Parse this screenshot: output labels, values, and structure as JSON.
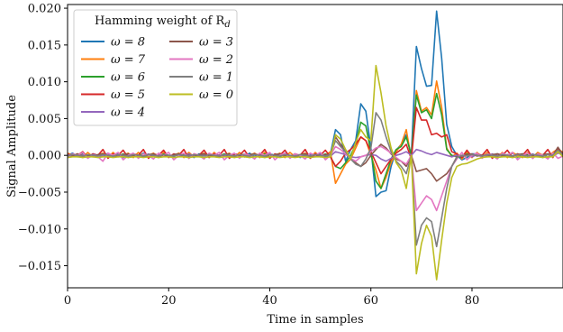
{
  "chart_data": {
    "type": "line",
    "xlabel": "Time in samples",
    "ylabel": "Signal Amplitude",
    "xlim": [
      0,
      98
    ],
    "ylim": [
      -0.018,
      0.0205
    ],
    "xticks": [
      0,
      20,
      40,
      60,
      80
    ],
    "xtick_labels": [
      "0",
      "20",
      "40",
      "60",
      "80"
    ],
    "yticks": [
      -0.015,
      -0.01,
      -0.005,
      0.0,
      0.005,
      0.01,
      0.015,
      0.02
    ],
    "ytick_labels": [
      "−0.015",
      "−0.010",
      "−0.005",
      "0.000",
      "0.005",
      "0.010",
      "0.015",
      "0.020"
    ],
    "grid": false,
    "legend": {
      "title": "Hamming weight of R",
      "title_subscript": "d",
      "placement": "top-left",
      "columns": 2
    },
    "x": [
      0,
      1,
      2,
      3,
      4,
      5,
      6,
      7,
      8,
      9,
      10,
      11,
      12,
      13,
      14,
      15,
      16,
      17,
      18,
      19,
      20,
      21,
      22,
      23,
      24,
      25,
      26,
      27,
      28,
      29,
      30,
      31,
      32,
      33,
      34,
      35,
      36,
      37,
      38,
      39,
      40,
      41,
      42,
      43,
      44,
      45,
      46,
      47,
      48,
      49,
      50,
      51,
      52,
      53,
      54,
      55,
      56,
      57,
      58,
      59,
      60,
      61,
      62,
      63,
      64,
      65,
      66,
      67,
      68,
      69,
      70,
      71,
      72,
      73,
      74,
      75,
      76,
      77,
      78,
      79,
      80,
      81,
      82,
      83,
      84,
      85,
      86,
      87,
      88,
      89,
      90,
      91,
      92,
      93,
      94,
      95,
      96,
      97,
      98
    ],
    "series": [
      {
        "name": "ω = 8",
        "color": "#1f77b4",
        "values": [
          0.0,
          0.0003,
          -0.0002,
          0.0002,
          -0.0003,
          0.0002,
          0.0,
          -0.0002,
          0.0003,
          -0.0002,
          0.0002,
          -0.0003,
          0.0002,
          0.0,
          -0.0002,
          0.0003,
          -0.0002,
          0.0002,
          -0.0003,
          0.0002,
          0.0,
          -0.0002,
          0.0003,
          -0.0002,
          0.0002,
          -0.0003,
          0.0002,
          0.0,
          -0.0002,
          0.0003,
          -0.0002,
          0.0002,
          -0.0003,
          0.0002,
          0.0,
          -0.0002,
          0.0003,
          -0.0002,
          0.0002,
          -0.0003,
          0.0002,
          0.0,
          -0.0002,
          0.0003,
          -0.0002,
          0.0002,
          -0.0003,
          0.0002,
          0.0,
          -0.0002,
          0.0002,
          -0.0003,
          0.0002,
          0.0035,
          0.0028,
          -0.0008,
          0.0008,
          0.002,
          0.007,
          0.006,
          0.001,
          -0.0056,
          -0.005,
          -0.0048,
          -0.0015,
          0.0007,
          0.0015,
          0.0028,
          0.0,
          0.0148,
          0.0118,
          0.0094,
          0.0095,
          0.0196,
          0.0132,
          0.0042,
          0.0012,
          0.0,
          -0.0006,
          -0.0003,
          0.0002,
          0.0002,
          -0.0002,
          0.0003,
          -0.0003,
          0.0002,
          0.0,
          -0.0002,
          0.0003,
          -0.0003,
          0.0002,
          0.0,
          -0.0002,
          0.0003,
          -0.0003,
          0.0002,
          0.0,
          0.0008,
          0.0001
        ]
      },
      {
        "name": "ω = 7",
        "color": "#ff7f0e",
        "values": [
          0.0003,
          0.0,
          0.0002,
          -0.0003,
          0.0004,
          -0.0002,
          0.0,
          0.0003,
          -0.0003,
          0.0004,
          -0.0002,
          0.0,
          0.0003,
          -0.0003,
          0.0004,
          -0.0002,
          0.0,
          0.0003,
          -0.0003,
          0.0004,
          -0.0002,
          0.0,
          0.0003,
          -0.0003,
          0.0004,
          -0.0002,
          0.0,
          0.0003,
          -0.0003,
          0.0004,
          -0.0002,
          0.0,
          0.0003,
          -0.0003,
          0.0004,
          -0.0002,
          0.0,
          0.0003,
          -0.0003,
          0.0004,
          -0.0002,
          0.0,
          0.0003,
          -0.0003,
          0.0004,
          -0.0002,
          0.0,
          0.0003,
          -0.0003,
          0.0004,
          -0.0002,
          0.0,
          0.0005,
          -0.0038,
          -0.0025,
          -0.0012,
          -0.0005,
          0.001,
          0.0025,
          0.002,
          0.0,
          -0.002,
          -0.0045,
          -0.003,
          -0.001,
          0.0005,
          0.0015,
          0.0035,
          -0.0005,
          0.0088,
          0.006,
          0.0065,
          0.0055,
          0.0101,
          0.0065,
          0.001,
          -0.0002,
          0.0003,
          -0.0005,
          0.0004,
          -0.0003,
          0.0004,
          -0.0003,
          0.0004,
          0.0,
          -0.0003,
          0.0004,
          -0.0003,
          0.0004,
          0.0,
          -0.0003,
          0.0004,
          -0.0003,
          0.0004,
          0.0,
          -0.0003,
          0.0004,
          0.0009,
          0.0004
        ]
      },
      {
        "name": "ω = 6",
        "color": "#2ca02c",
        "values": [
          -0.0002,
          0.0001,
          -0.0001,
          0.0002,
          -0.0002,
          0.0001,
          -0.0001,
          0.0002,
          -0.0002,
          0.0001,
          -0.0001,
          0.0002,
          -0.0002,
          0.0001,
          -0.0001,
          0.0002,
          -0.0002,
          0.0001,
          -0.0001,
          0.0002,
          -0.0002,
          0.0001,
          -0.0001,
          0.0002,
          -0.0002,
          0.0001,
          -0.0001,
          0.0002,
          -0.0002,
          0.0001,
          -0.0001,
          0.0002,
          -0.0002,
          0.0001,
          -0.0001,
          0.0002,
          -0.0002,
          0.0001,
          -0.0001,
          0.0002,
          -0.0002,
          0.0001,
          -0.0001,
          0.0002,
          -0.0002,
          0.0001,
          -0.0001,
          0.0002,
          -0.0002,
          0.0001,
          -0.0001,
          0.0002,
          -0.0002,
          -0.0015,
          -0.0018,
          -0.001,
          0.0,
          0.0015,
          0.0045,
          0.004,
          0.0005,
          -0.0035,
          -0.0045,
          -0.0025,
          -0.0005,
          0.0008,
          0.0012,
          0.0025,
          0.0,
          0.0082,
          0.0058,
          0.0062,
          0.005,
          0.0084,
          0.0055,
          0.0008,
          0.0,
          -0.0002,
          -0.0003,
          0.0002,
          -0.0001,
          0.0002,
          -0.0002,
          0.0001,
          -0.0001,
          0.0002,
          -0.0002,
          0.0001,
          -0.0001,
          0.0002,
          -0.0002,
          0.0001,
          -0.0001,
          0.0002,
          -0.0002,
          0.0001,
          -0.0001,
          0.0005,
          0.0002
        ]
      },
      {
        "name": "ω = 5",
        "color": "#d62728",
        "values": [
          0.0002,
          -0.0001,
          0.0,
          0.0005,
          -0.0003,
          0.0002,
          0.0,
          0.0008,
          -0.0004,
          0.0002,
          0.0,
          0.0007,
          -0.0003,
          0.0002,
          0.0,
          0.0008,
          -0.0004,
          0.0002,
          0.0,
          0.0007,
          -0.0003,
          0.0002,
          0.0,
          0.0008,
          -0.0004,
          0.0002,
          0.0,
          0.0007,
          -0.0003,
          0.0002,
          0.0,
          0.0008,
          -0.0004,
          0.0002,
          0.0,
          0.0007,
          -0.0003,
          0.0002,
          0.0,
          0.0008,
          -0.0004,
          0.0002,
          0.0,
          0.0007,
          -0.0003,
          0.0002,
          0.0,
          0.0008,
          -0.0004,
          0.0002,
          0.0,
          0.0007,
          -0.0002,
          -0.0015,
          -0.0008,
          0.0003,
          0.0008,
          0.0015,
          0.0025,
          0.002,
          0.0005,
          -0.001,
          -0.0025,
          -0.0015,
          -0.0005,
          0.0003,
          0.0008,
          0.0015,
          -0.0005,
          0.0065,
          0.0048,
          0.0048,
          0.0028,
          0.003,
          0.0025,
          0.0028,
          0.0005,
          0.0002,
          -0.0003,
          0.0007,
          -0.0002,
          0.0002,
          0.0,
          0.0008,
          -0.0004,
          0.0002,
          0.0,
          0.0007,
          -0.0003,
          0.0002,
          0.0,
          0.0008,
          -0.0004,
          0.0002,
          0.0,
          0.0008,
          -0.0003,
          0.0009,
          0.0002
        ]
      },
      {
        "name": "ω = 4",
        "color": "#9467bd",
        "values": [
          0.0,
          0.0001,
          -0.0001,
          0.0001,
          -0.0002,
          0.0001,
          0.0,
          -0.0001,
          0.0002,
          -0.0001,
          0.0,
          0.0001,
          -0.0002,
          0.0001,
          0.0,
          -0.0001,
          0.0002,
          -0.0001,
          0.0,
          0.0001,
          -0.0002,
          0.0001,
          0.0,
          -0.0001,
          0.0002,
          -0.0001,
          0.0,
          0.0001,
          -0.0002,
          0.0001,
          0.0,
          -0.0001,
          0.0002,
          -0.0001,
          0.0,
          0.0001,
          -0.0002,
          0.0001,
          0.0,
          -0.0001,
          0.0002,
          -0.0001,
          0.0,
          0.0001,
          -0.0002,
          0.0001,
          0.0,
          -0.0001,
          0.0002,
          -0.0001,
          0.0,
          0.0001,
          -0.0001,
          0.0005,
          0.0003,
          0.0001,
          -0.0002,
          -0.0003,
          -0.0002,
          0.0,
          0.0001,
          0.0,
          -0.0005,
          -0.0008,
          -0.0004,
          0.0,
          0.0002,
          0.0005,
          0.0,
          0.0008,
          0.0006,
          0.0003,
          0.0001,
          0.0004,
          0.0002,
          0.0,
          -0.0002,
          0.0,
          -0.0001,
          0.0001,
          -0.0002,
          0.0001,
          0.0,
          -0.0001,
          0.0002,
          -0.0001,
          0.0,
          0.0001,
          -0.0002,
          0.0001,
          0.0,
          -0.0001,
          0.0002,
          -0.0001,
          0.0,
          0.0001,
          -0.0001,
          0.0003,
          0.0001
        ]
      },
      {
        "name": "ω = 3",
        "color": "#8c564b",
        "values": [
          -0.0002,
          0.0,
          0.0002,
          -0.0001,
          0.0,
          -0.0002,
          0.0001,
          0.0002,
          -0.0001,
          0.0,
          -0.0002,
          0.0001,
          0.0002,
          -0.0001,
          0.0,
          -0.0002,
          0.0001,
          0.0002,
          -0.0001,
          0.0,
          -0.0002,
          0.0001,
          0.0002,
          -0.0001,
          0.0,
          -0.0002,
          0.0001,
          0.0002,
          -0.0001,
          0.0,
          -0.0002,
          0.0001,
          0.0002,
          -0.0001,
          0.0,
          -0.0002,
          0.0001,
          0.0002,
          -0.0001,
          0.0,
          -0.0002,
          0.0001,
          0.0002,
          -0.0001,
          0.0,
          -0.0002,
          0.0001,
          0.0002,
          -0.0001,
          0.0,
          -0.0002,
          0.0001,
          0.0,
          0.0025,
          0.0015,
          0.0005,
          -0.0005,
          -0.001,
          -0.0015,
          -0.001,
          0.0,
          0.0008,
          0.0015,
          0.001,
          0.0002,
          -0.0005,
          -0.0008,
          -0.0015,
          0.0,
          -0.0022,
          -0.002,
          -0.0018,
          -0.0025,
          -0.0035,
          -0.003,
          -0.0025,
          -0.0015,
          -0.0002,
          0.0,
          0.0001,
          0.0002,
          -0.0001,
          0.0,
          -0.0002,
          0.0001,
          0.0002,
          -0.0001,
          0.0,
          -0.0002,
          0.0001,
          0.0002,
          -0.0001,
          0.0,
          -0.0002,
          0.0001,
          0.0002,
          0.0,
          0.0011,
          0.0001
        ]
      },
      {
        "name": "ω = 2",
        "color": "#e377c2",
        "values": [
          -0.0003,
          0.0002,
          0.0,
          0.0004,
          -0.0004,
          0.0,
          -0.0002,
          -0.0008,
          0.0003,
          0.0,
          0.0004,
          -0.0006,
          0.0,
          0.0003,
          -0.0004,
          0.0002,
          0.0,
          -0.0005,
          0.0003,
          0.0,
          0.0004,
          -0.0006,
          0.0,
          0.0003,
          -0.0004,
          0.0002,
          0.0,
          -0.0005,
          0.0003,
          0.0,
          0.0004,
          -0.0006,
          0.0,
          0.0003,
          -0.0004,
          0.0002,
          0.0,
          -0.0005,
          0.0003,
          0.0,
          0.0004,
          -0.0006,
          0.0,
          0.0003,
          -0.0004,
          0.0002,
          0.0,
          -0.0005,
          0.0003,
          0.0,
          0.0004,
          -0.0006,
          0.0,
          0.0012,
          0.0008,
          0.0002,
          -0.0004,
          -0.0008,
          -0.0002,
          0.0,
          0.0005,
          0.001,
          0.0012,
          0.0008,
          0.0003,
          -0.0003,
          -0.0008,
          -0.0012,
          0.0,
          -0.0075,
          -0.0065,
          -0.0055,
          -0.006,
          -0.0075,
          -0.0055,
          -0.0035,
          -0.0015,
          -0.0005,
          0.0004,
          -0.0006,
          0.0,
          0.0003,
          -0.0004,
          0.0002,
          0.0,
          -0.0005,
          0.0003,
          0.0,
          0.0004,
          -0.0006,
          0.0,
          0.0003,
          -0.0004,
          0.0002,
          0.0,
          -0.0005,
          0.0003,
          -0.0004,
          -0.0001
        ]
      },
      {
        "name": "ω = 1",
        "color": "#7f7f7f",
        "values": [
          -0.0001,
          0.0001,
          0.0,
          -0.0001,
          0.0001,
          0.0,
          -0.0001,
          0.0001,
          0.0,
          -0.0001,
          0.0001,
          0.0,
          -0.0001,
          0.0001,
          0.0,
          -0.0001,
          0.0001,
          0.0,
          -0.0001,
          0.0001,
          0.0,
          -0.0001,
          0.0001,
          0.0,
          -0.0001,
          0.0001,
          0.0,
          -0.0001,
          0.0001,
          0.0,
          -0.0001,
          0.0001,
          0.0,
          -0.0001,
          0.0001,
          0.0,
          -0.0001,
          0.0001,
          0.0,
          -0.0001,
          0.0001,
          0.0,
          -0.0001,
          0.0001,
          0.0,
          -0.0001,
          0.0001,
          0.0,
          -0.0001,
          0.0001,
          0.0,
          -0.0001,
          0.0001,
          0.002,
          0.0012,
          0.0005,
          -0.0005,
          -0.0012,
          -0.0015,
          -0.0005,
          0.001,
          0.0058,
          0.0048,
          0.0025,
          0.0005,
          -0.0008,
          -0.0015,
          -0.0025,
          0.0,
          -0.0122,
          -0.0095,
          -0.0085,
          -0.009,
          -0.0124,
          -0.0085,
          -0.0045,
          -0.0015,
          -0.0003,
          0.0,
          -0.0001,
          0.0001,
          0.0,
          -0.0001,
          0.0001,
          0.0,
          -0.0001,
          0.0001,
          0.0,
          -0.0001,
          0.0001,
          0.0,
          -0.0001,
          0.0001,
          0.0,
          -0.0001,
          0.0001,
          0.0,
          0.0007,
          0.0
        ]
      },
      {
        "name": "ω = 0",
        "color": "#bcbd22",
        "values": [
          -0.0003,
          -0.0002,
          -0.0002,
          -0.0003,
          -0.0002,
          -0.0002,
          -0.0003,
          -0.0002,
          -0.0002,
          -0.0003,
          -0.0002,
          -0.0002,
          -0.0003,
          -0.0002,
          -0.0002,
          -0.0003,
          -0.0002,
          -0.0002,
          -0.0003,
          -0.0002,
          -0.0002,
          -0.0003,
          -0.0002,
          -0.0002,
          -0.0003,
          -0.0002,
          -0.0002,
          -0.0003,
          -0.0002,
          -0.0002,
          -0.0003,
          -0.0002,
          -0.0002,
          -0.0003,
          -0.0002,
          -0.0002,
          -0.0003,
          -0.0002,
          -0.0002,
          -0.0003,
          -0.0002,
          -0.0002,
          -0.0003,
          -0.0002,
          -0.0002,
          -0.0003,
          -0.0002,
          -0.0002,
          -0.0003,
          -0.0002,
          -0.0002,
          -0.0003,
          -0.0002,
          0.0028,
          0.0022,
          0.0008,
          -0.0005,
          0.0018,
          0.0035,
          0.0025,
          0.002,
          0.0122,
          0.0085,
          0.004,
          0.001,
          -0.001,
          -0.002,
          -0.0045,
          0.0,
          -0.0161,
          -0.012,
          -0.0095,
          -0.011,
          -0.0169,
          -0.0115,
          -0.0065,
          -0.003,
          -0.0015,
          -0.0012,
          -0.0011,
          -0.0008,
          -0.0005,
          -0.0003,
          -0.0002,
          -0.0002,
          -0.0003,
          -0.0002,
          -0.0002,
          -0.0003,
          -0.0002,
          -0.0002,
          -0.0003,
          -0.0002,
          -0.0002,
          -0.0003,
          -0.0002,
          -0.0002,
          0.0005,
          -0.0002
        ]
      }
    ]
  }
}
